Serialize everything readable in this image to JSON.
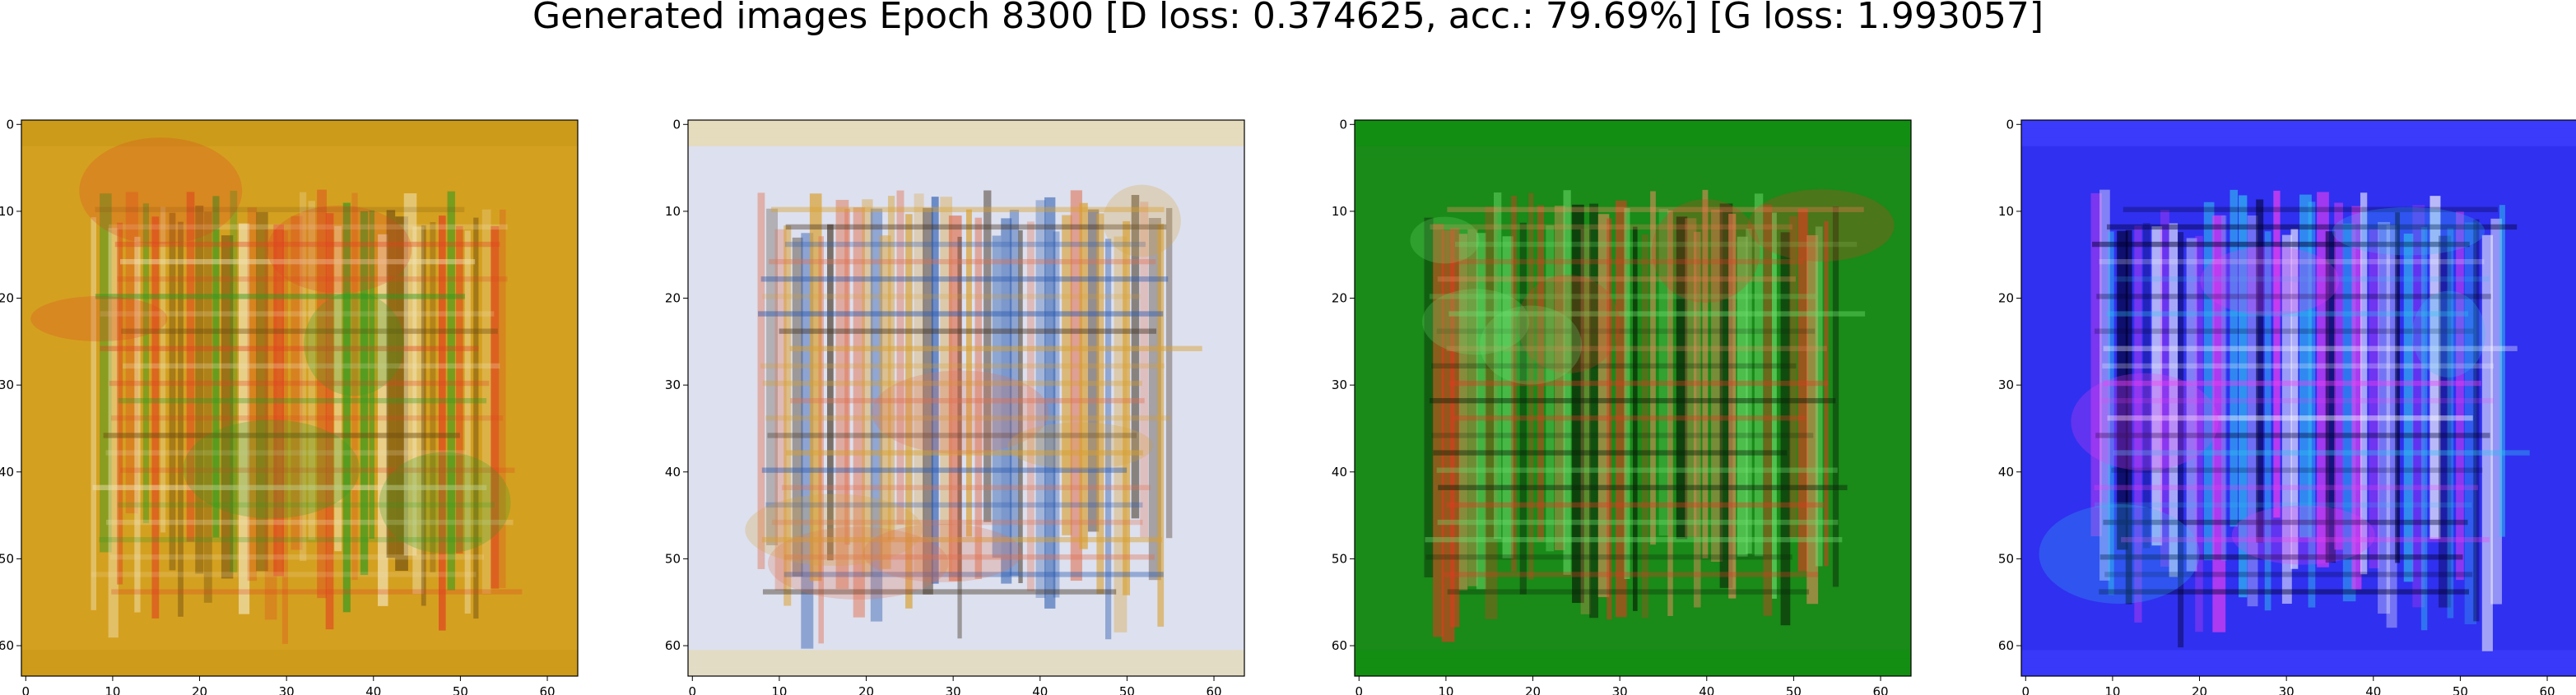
{
  "figure": {
    "title": "Generated images Epoch 8300 [D loss: 0.374625, acc.: 79.69%] [G loss: 1.993057]"
  },
  "axes": {
    "x_ticks": [
      "0",
      "10",
      "20",
      "30",
      "40",
      "50",
      "60"
    ],
    "y_ticks": [
      "0",
      "10",
      "20",
      "30",
      "40",
      "50",
      "60"
    ],
    "pixel_range": [
      64,
      64
    ]
  },
  "panels": [
    {
      "id": "image-1",
      "palette": {
        "bg": "#d4a020",
        "frame": "#c99818",
        "accent1": "#e04020",
        "accent2": "#f2e4b8",
        "accent3": "#2a9a20",
        "dark": "#6a4a10"
      }
    },
    {
      "id": "image-2",
      "palette": {
        "bg": "#dde0ee",
        "frame": "#e8d8a8",
        "accent1": "#d9a030",
        "accent2": "#2a5ab0",
        "accent3": "#e07050",
        "dark": "#403020"
      }
    },
    {
      "id": "image-3",
      "palette": {
        "bg": "#1a8a18",
        "frame": "#109010",
        "accent1": "#e03a20",
        "accent2": "#f09060",
        "accent3": "#70e070",
        "dark": "#082008"
      }
    },
    {
      "id": "image-4",
      "palette": {
        "bg": "#3030f0",
        "frame": "#4040ff",
        "accent1": "#f040f0",
        "accent2": "#ffffff",
        "accent3": "#30c0f0",
        "dark": "#000030"
      }
    }
  ]
}
